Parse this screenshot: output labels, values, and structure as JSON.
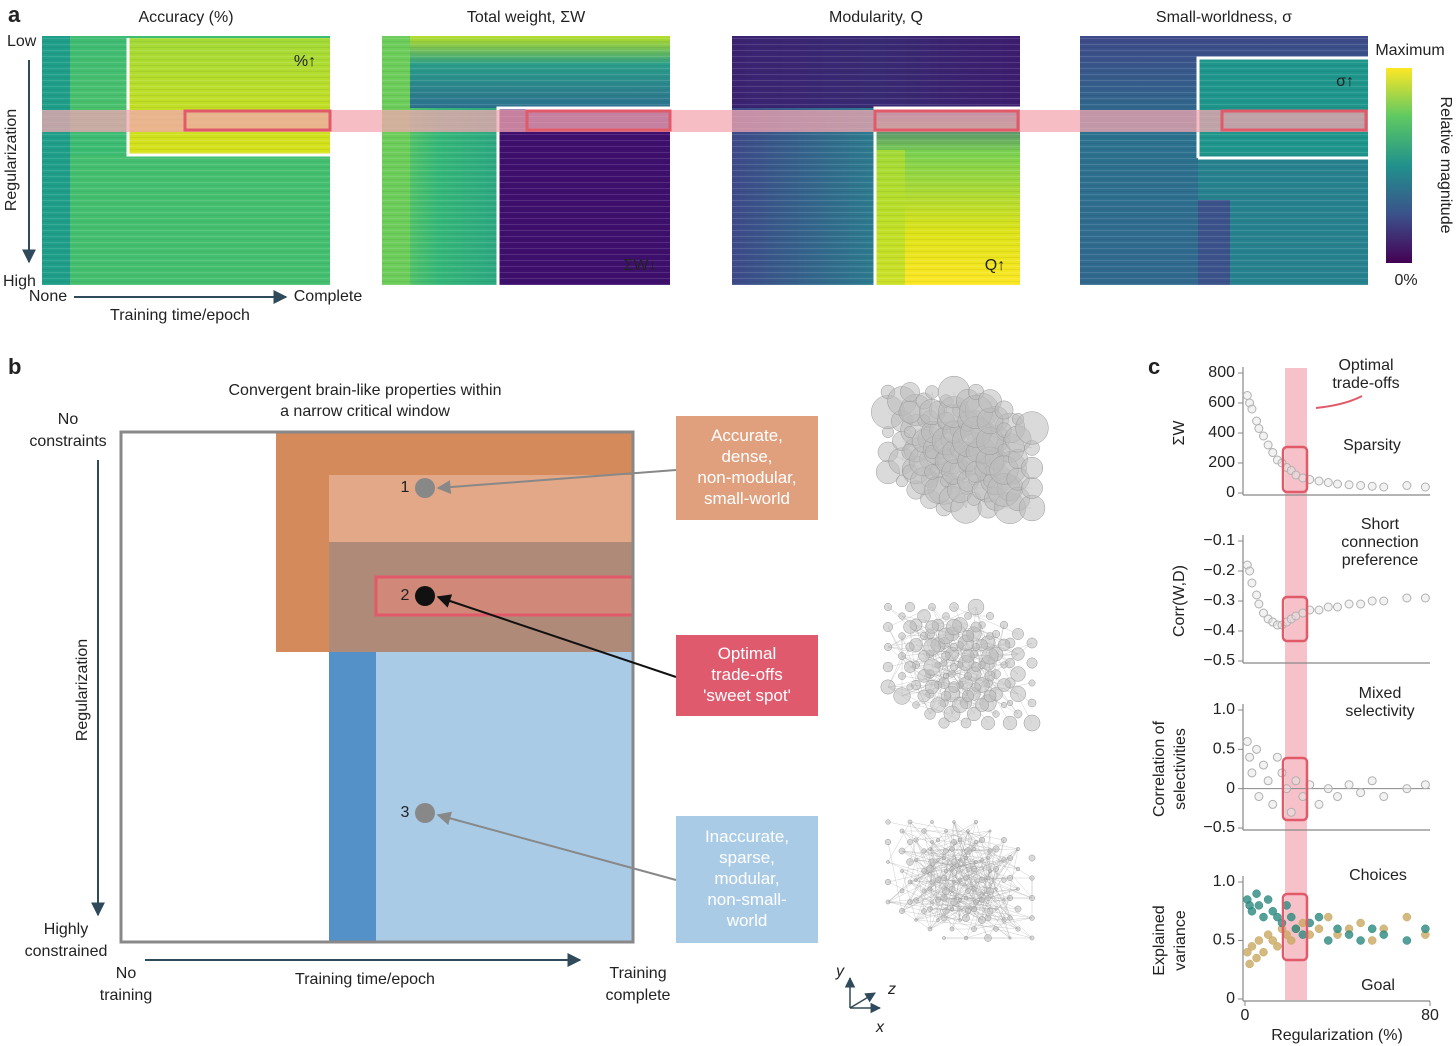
{
  "panel_a": {
    "label": "a",
    "heatmaps": [
      {
        "title": "Accuracy (%)",
        "marker": "%↑"
      },
      {
        "title": "Total weight, ΣW",
        "marker": "ΣW↓"
      },
      {
        "title": "Modularity, Q",
        "marker": "Q↑"
      },
      {
        "title": "Small-worldness, σ",
        "marker": "σ↑"
      }
    ],
    "y_low": "Low",
    "y_high": "High",
    "y_label": "Regularization",
    "x_start": "None",
    "x_end": "Complete",
    "x_label": "Training time/epoch",
    "colorbar": {
      "max": "Maximum",
      "min": "0%",
      "label": "Relative magnitude"
    }
  },
  "panel_b": {
    "label": "b",
    "title": [
      "Convergent brain-like properties within",
      "a narrow critical window"
    ],
    "y_top": [
      "No",
      "constraints"
    ],
    "y_bottom": [
      "Highly",
      "constrained"
    ],
    "y_label": "Regularization",
    "x_start": [
      "No",
      "training"
    ],
    "x_label": "Training time/epoch",
    "x_end": [
      "Training",
      "complete"
    ],
    "points": [
      "1",
      "2",
      "3"
    ],
    "boxes": [
      [
        "Accurate,",
        "dense,",
        "non-modular,",
        "small-world"
      ],
      [
        "Optimal",
        "trade-offs",
        "'sweet spot'"
      ],
      [
        "Inaccurate,",
        "sparse,",
        "modular,",
        "non-small-",
        "world"
      ]
    ],
    "axes": [
      "y",
      "z",
      "x"
    ]
  },
  "panel_c": {
    "label": "c",
    "annotation": [
      "Optimal",
      "trade-offs"
    ]
  },
  "chart_data": [
    {
      "type": "scatter",
      "ylabel": [
        "ΣW"
      ],
      "annotation": [
        "Sparsity"
      ],
      "xlim": [
        0,
        80
      ],
      "ylim": [
        0,
        800
      ],
      "yticks": [
        0,
        200,
        400,
        600,
        800
      ],
      "x": [
        1,
        2,
        3,
        5,
        6,
        8,
        10,
        12,
        14,
        16,
        18,
        20,
        22,
        25,
        28,
        32,
        36,
        40,
        45,
        50,
        55,
        60,
        70,
        78
      ],
      "series": [
        {
          "color": "#b0b0b0",
          "values": [
            650,
            600,
            560,
            480,
            430,
            380,
            320,
            270,
            220,
            200,
            170,
            150,
            120,
            100,
            90,
            80,
            70,
            60,
            55,
            50,
            45,
            40,
            50,
            40
          ]
        }
      ]
    },
    {
      "type": "scatter",
      "ylabel": [
        "Corr(W,D)"
      ],
      "annotation": [
        "Short",
        "connection",
        "preference"
      ],
      "xlim": [
        0,
        80
      ],
      "ylim": [
        -0.5,
        -0.1
      ],
      "yticks": [
        {
          "value": -0.5,
          "label": "−0.5"
        },
        {
          "value": -0.4,
          "label": "−0.4"
        },
        {
          "value": -0.3,
          "label": "−0.3"
        },
        {
          "value": -0.2,
          "label": "−0.2"
        },
        {
          "value": -0.1,
          "label": "−0.1"
        }
      ],
      "x": [
        1,
        2,
        3,
        5,
        6,
        8,
        10,
        12,
        14,
        16,
        18,
        20,
        22,
        25,
        28,
        32,
        36,
        40,
        45,
        50,
        55,
        60,
        70,
        78
      ],
      "series": [
        {
          "color": "#b0b0b0",
          "values": [
            -0.18,
            -0.2,
            -0.24,
            -0.28,
            -0.31,
            -0.34,
            -0.36,
            -0.37,
            -0.38,
            -0.38,
            -0.37,
            -0.36,
            -0.35,
            -0.34,
            -0.33,
            -0.33,
            -0.32,
            -0.32,
            -0.31,
            -0.31,
            -0.3,
            -0.3,
            -0.29,
            -0.29
          ]
        }
      ]
    },
    {
      "type": "scatter",
      "ylabel": [
        "Correlation of",
        "selectivities"
      ],
      "annotation": [
        "Mixed",
        "selectivity"
      ],
      "xlim": [
        0,
        80
      ],
      "ylim": [
        -0.5,
        1
      ],
      "yticks": [
        {
          "value": -0.5,
          "label": "−0.5"
        },
        0,
        0.5,
        {
          "value": 1,
          "label": "1.0"
        }
      ],
      "x": [
        1,
        2,
        3,
        5,
        6,
        8,
        10,
        12,
        14,
        16,
        18,
        20,
        22,
        25,
        28,
        32,
        36,
        40,
        45,
        50,
        55,
        60,
        70,
        78
      ],
      "series": [
        {
          "color": "#b0b0b0",
          "values": [
            0.6,
            0.4,
            0.2,
            0.5,
            -0.1,
            0.3,
            0.1,
            -0.2,
            0.4,
            0.2,
            0,
            -0.3,
            0.1,
            -0.1,
            0.05,
            -0.2,
            0,
            -0.1,
            0.05,
            -0.05,
            0.1,
            -0.1,
            0,
            0.05
          ]
        }
      ]
    },
    {
      "type": "scatter",
      "ylabel": [
        "Explained",
        "variance"
      ],
      "xlabel": "Regularization (%)",
      "xlim": [
        0,
        80
      ],
      "xticks": [
        0,
        80
      ],
      "ylim": [
        0,
        1
      ],
      "yticks": [
        0,
        0.5,
        {
          "value": 1,
          "label": "1.0"
        }
      ],
      "x": [
        1,
        2,
        3,
        5,
        6,
        8,
        10,
        12,
        14,
        16,
        18,
        20,
        22,
        25,
        28,
        32,
        36,
        40,
        45,
        50,
        55,
        60,
        70,
        78
      ],
      "series": [
        {
          "name": "Choices",
          "color": "#c9a862",
          "values": [
            0.4,
            0.3,
            0.45,
            0.35,
            0.5,
            0.4,
            0.55,
            0.5,
            0.45,
            0.6,
            0.55,
            0.5,
            0.6,
            0.65,
            0.55,
            0.6,
            0.7,
            0.55,
            0.6,
            0.65,
            0.5,
            0.6,
            0.7,
            0.55
          ]
        },
        {
          "name": "Goal",
          "color": "#2a8a80",
          "values": [
            0.85,
            0.8,
            0.75,
            0.9,
            0.8,
            0.7,
            0.85,
            0.75,
            0.7,
            0.65,
            0.8,
            0.7,
            0.6,
            0.55,
            0.65,
            0.7,
            0.5,
            0.6,
            0.55,
            0.5,
            0.6,
            0.55,
            0.5,
            0.6
          ]
        }
      ]
    }
  ]
}
